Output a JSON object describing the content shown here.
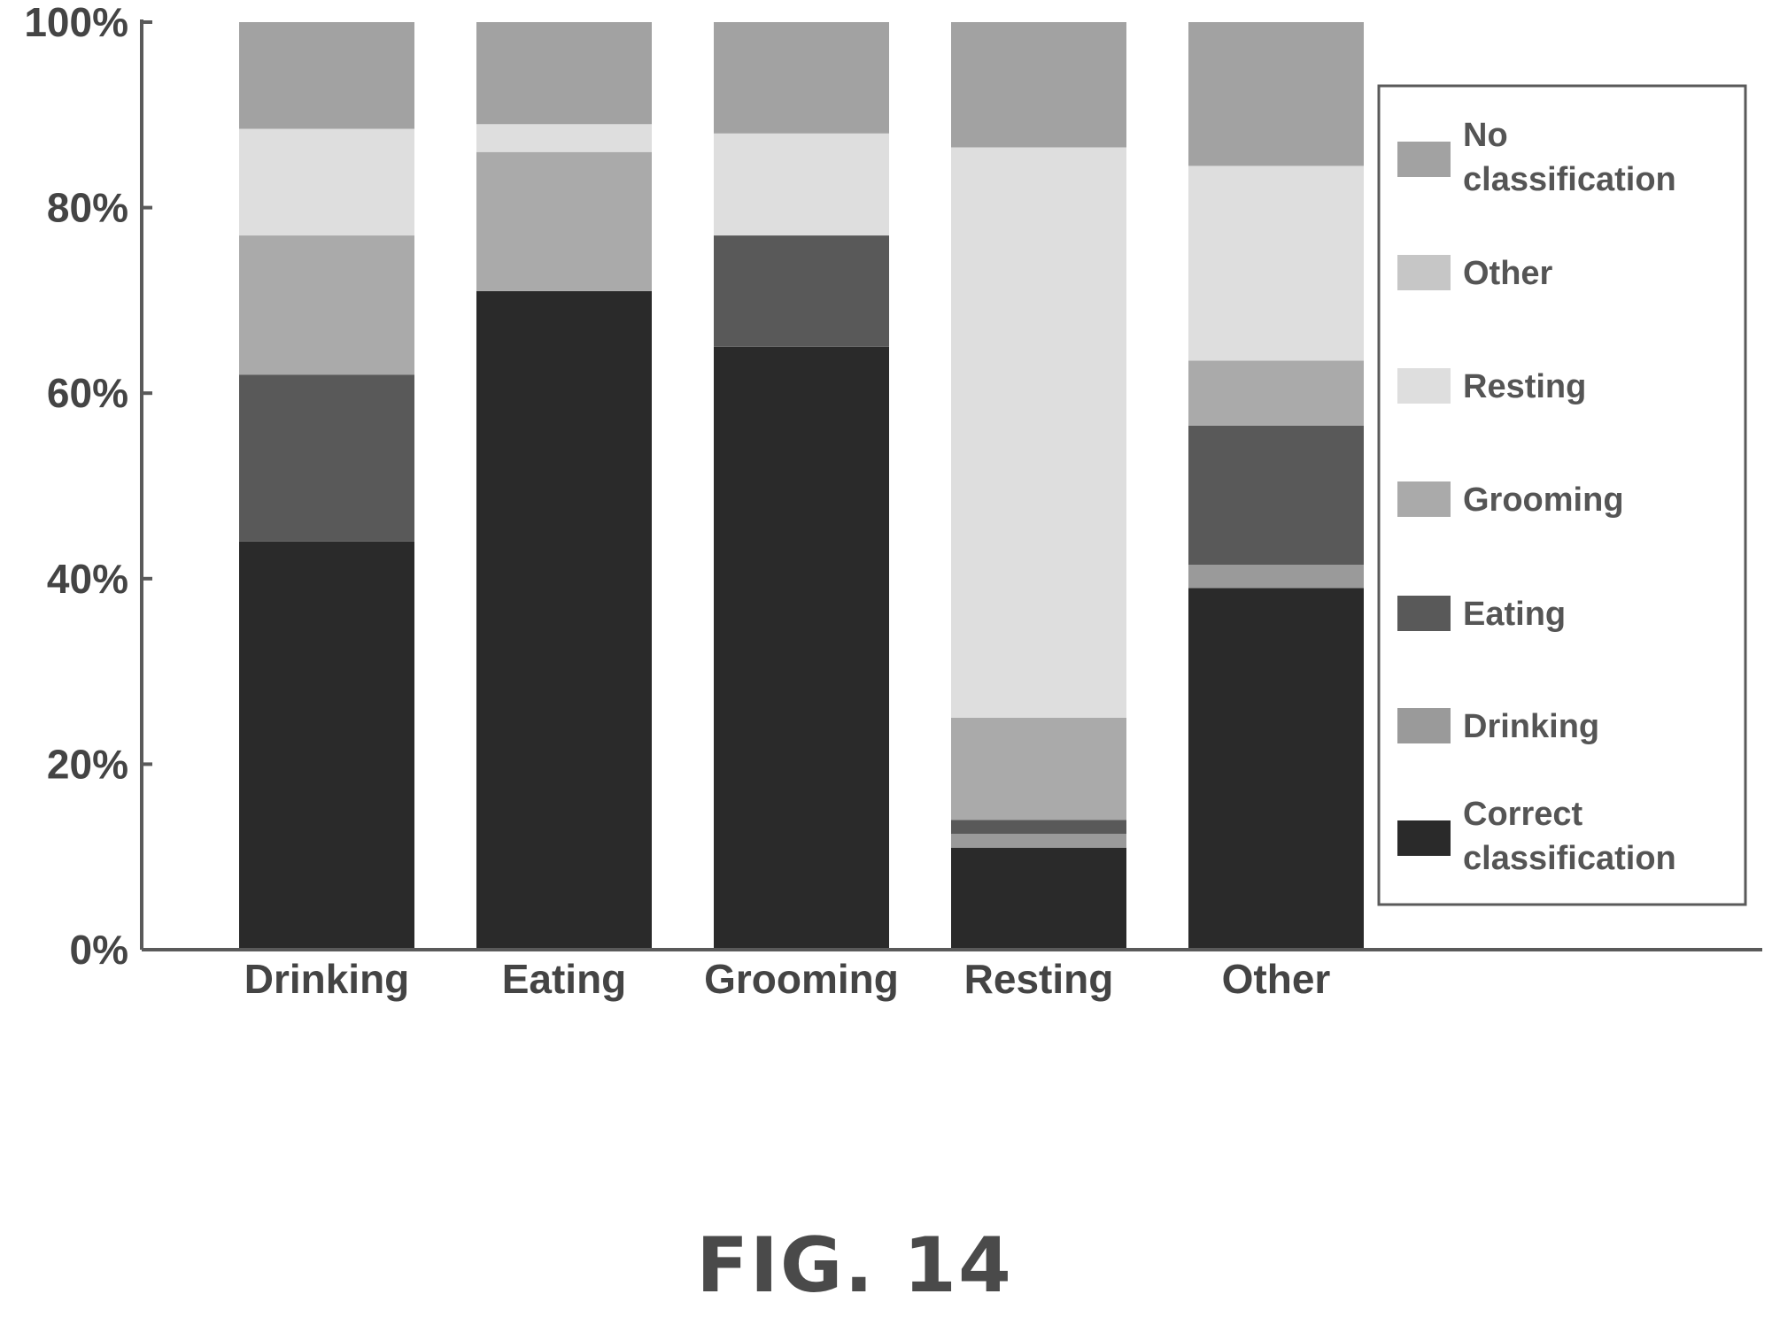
{
  "figure_label": "FIG. 14",
  "chart_data": {
    "type": "bar",
    "stacked": true,
    "categories": [
      "Drinking",
      "Eating",
      "Grooming",
      "Resting",
      "Other"
    ],
    "ylim": [
      0,
      100
    ],
    "yticks": [
      "0%",
      "20%",
      "40%",
      "60%",
      "80%",
      "100%"
    ],
    "ytick_values": [
      0,
      20,
      40,
      60,
      80,
      100
    ],
    "xlabel": "",
    "ylabel": "",
    "legend_position": "right",
    "series": [
      {
        "name": "Correct classification",
        "color": "#2a2a2a",
        "values": [
          44,
          71,
          65,
          11,
          39
        ]
      },
      {
        "name": "Drinking",
        "color": "#9a9a9a",
        "values": [
          0,
          0,
          0,
          1.5,
          2.5
        ]
      },
      {
        "name": "Eating",
        "color": "#595959",
        "values": [
          18,
          0,
          12,
          1.5,
          15
        ]
      },
      {
        "name": "Grooming",
        "color": "#aaaaaa",
        "values": [
          15,
          15,
          0,
          11,
          7
        ]
      },
      {
        "name": "Resting",
        "color": "#dedede",
        "values": [
          11.5,
          3,
          11,
          61.5,
          21
        ]
      },
      {
        "name": "Other",
        "color": "#c6c6c6",
        "values": [
          0,
          0,
          0,
          0,
          0
        ]
      },
      {
        "name": "No classification",
        "color": "#a2a2a2",
        "values": [
          11.5,
          11,
          12,
          13.5,
          15.5
        ]
      }
    ],
    "legend_order": [
      "No classification",
      "Other",
      "Resting",
      "Grooming",
      "Eating",
      "Drinking",
      "Correct classification"
    ]
  }
}
